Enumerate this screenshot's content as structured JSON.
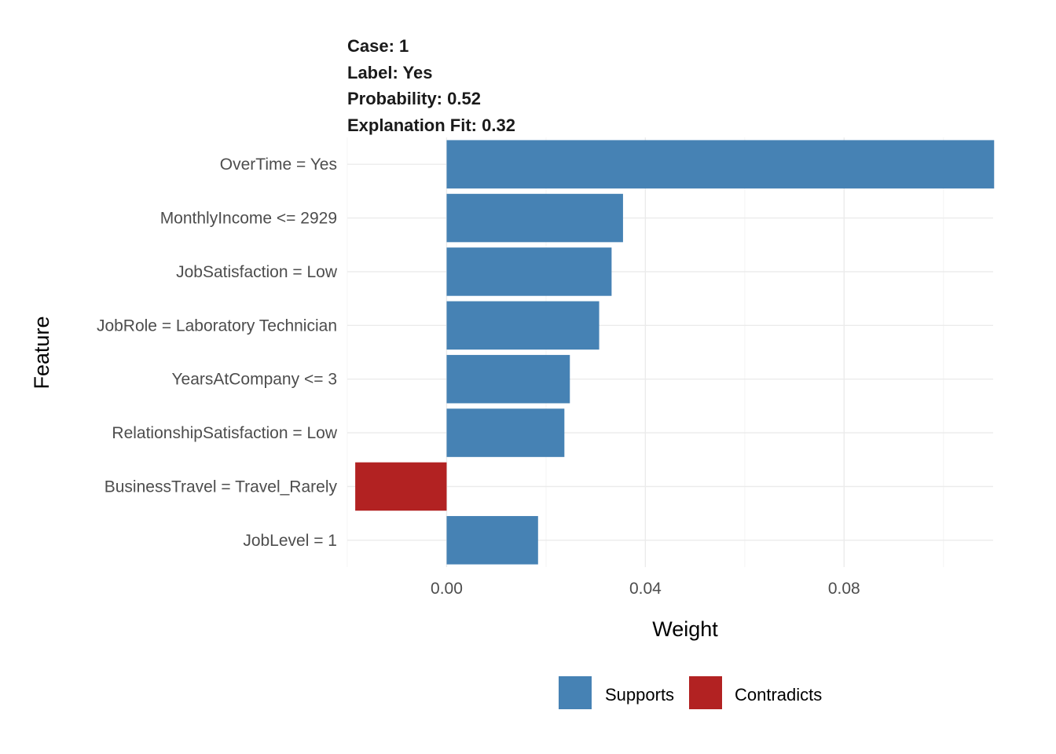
{
  "chart_data": {
    "type": "bar",
    "orientation": "horizontal",
    "title_lines": [
      "Case: 1",
      "Label: Yes",
      "Probability: 0.52",
      "Explanation Fit: 0.32"
    ],
    "xlabel": "Weight",
    "ylabel": "Feature",
    "xlim": [
      -0.02,
      0.11
    ],
    "xticks": [
      {
        "value": 0.0,
        "label": "0.00"
      },
      {
        "value": 0.04,
        "label": "0.04"
      },
      {
        "value": 0.08,
        "label": "0.08"
      }
    ],
    "grid": true,
    "categories": [
      "OverTime = Yes",
      "MonthlyIncome <= 2929",
      "JobSatisfaction = Low",
      "JobRole = Laboratory Technician",
      "YearsAtCompany <= 3",
      "RelationshipSatisfaction = Low",
      "BusinessTravel = Travel_Rarely",
      "JobLevel = 1"
    ],
    "values": [
      0.1102,
      0.0355,
      0.0332,
      0.0307,
      0.0248,
      0.0237,
      -0.0184,
      0.0184
    ],
    "support_type": [
      "Supports",
      "Supports",
      "Supports",
      "Supports",
      "Supports",
      "Supports",
      "Contradicts",
      "Supports"
    ],
    "legend": {
      "position": "bottom",
      "entries": [
        {
          "name": "Supports",
          "color": "#4682b4"
        },
        {
          "name": "Contradicts",
          "color": "#b22222"
        }
      ]
    }
  }
}
